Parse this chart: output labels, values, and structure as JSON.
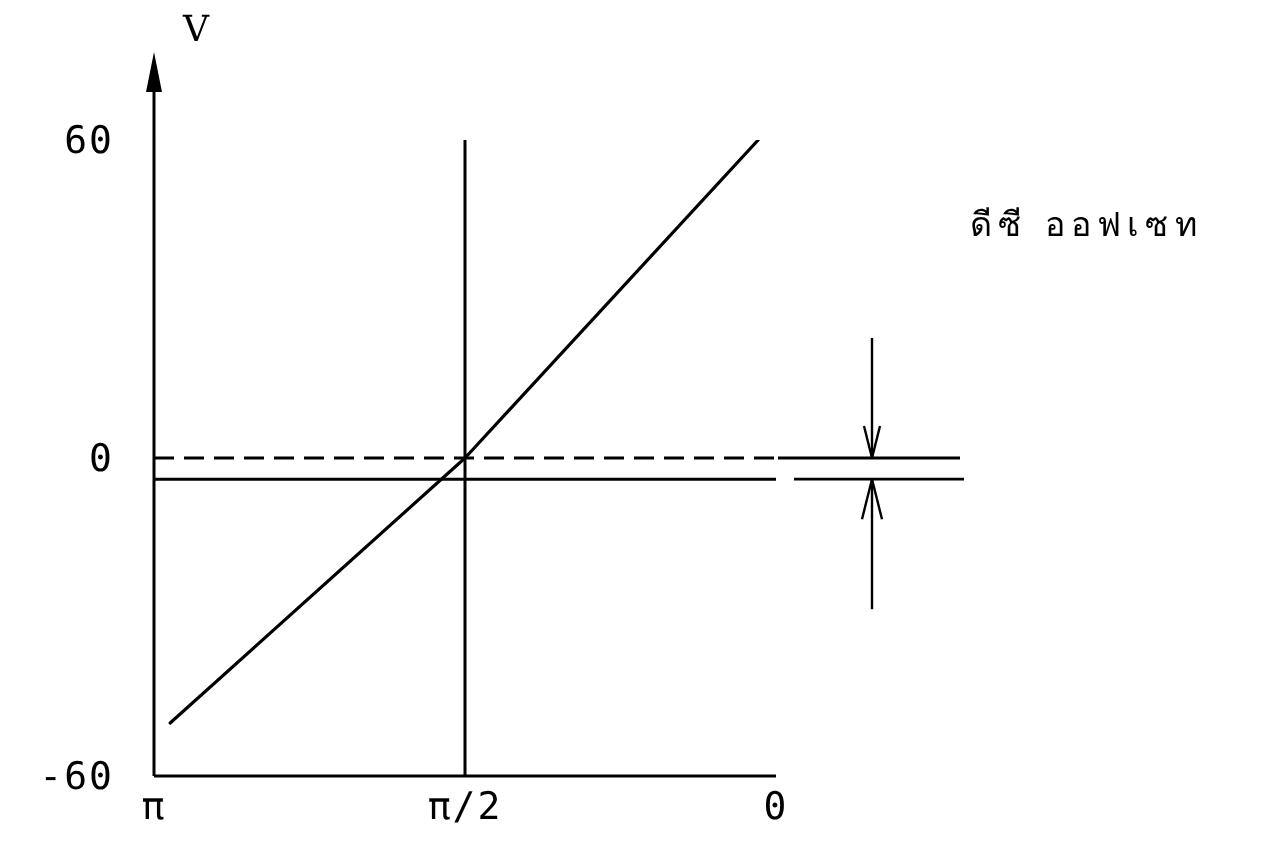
{
  "chart_data": {
    "type": "line",
    "ylabel": "V",
    "x": [
      3.06,
      1.5708,
      0.09
    ],
    "values": [
      -50,
      0,
      60
    ],
    "color": "#000000",
    "xlim": [
      3.1416,
      0
    ],
    "xticks": [
      {
        "value": 3.1416,
        "label": "π"
      },
      {
        "value": 1.5708,
        "label": "π/2"
      },
      {
        "value": 0,
        "label": "0"
      }
    ],
    "ylim": [
      -60,
      60
    ],
    "yticks": [
      60,
      0,
      -60
    ],
    "ref_lines": [
      {
        "axis": "x",
        "value": 1.5708,
        "color": "#000000"
      },
      {
        "axis": "y",
        "value": 0,
        "line_style": "dashed",
        "color": "#000000"
      },
      {
        "axis": "y",
        "value": -4,
        "color": "#000000"
      }
    ],
    "annotations": [
      "ดีซี ออฟเซท"
    ]
  }
}
